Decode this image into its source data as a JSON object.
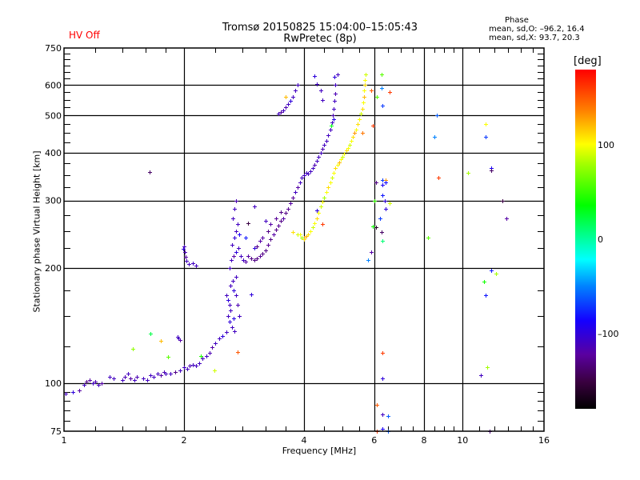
{
  "header": {
    "title_line1": "Tromsø 20150825 15:04:00–15:05:43",
    "title_line2": "RwPretec (8p)",
    "status": "HV Off",
    "status_color": "#ff0000"
  },
  "phase_info": {
    "title": "Phase",
    "o_line": "mean, sd,O: –96.2, 16.4",
    "x_line": "mean, sd,X:  93.7, 20.3"
  },
  "colorbar": {
    "unit": "[deg]",
    "range": [
      -180,
      180
    ],
    "ticks": [
      {
        "value": 100,
        "label": "100"
      },
      {
        "value": 0,
        "label": "0"
      },
      {
        "value": -100,
        "label": "–100"
      }
    ]
  },
  "chart_data": {
    "type": "scatter",
    "title": "Tromsø 20150825 15:04:00–15:05:43",
    "subtitle": "RwPretec (8p)",
    "xlabel": "Frequency [MHz]",
    "ylabel": "Stationary phase Virtual Height [km]",
    "xscale": "log",
    "yscale": "log",
    "xlim": [
      1,
      16
    ],
    "ylim": [
      75,
      750
    ],
    "grid": true,
    "x_ticks": [
      {
        "value": 1,
        "label": "1"
      },
      {
        "value": 2,
        "label": "2"
      },
      {
        "value": 4,
        "label": "4"
      },
      {
        "value": 6,
        "label": "6"
      },
      {
        "value": 8,
        "label": "8"
      },
      {
        "value": 10,
        "label": "10"
      },
      {
        "value": 16,
        "label": "16"
      }
    ],
    "y_ticks": [
      {
        "value": 75,
        "label": "75"
      },
      {
        "value": 100,
        "label": "100"
      },
      {
        "value": 200,
        "label": "200"
      },
      {
        "value": 300,
        "label": "300"
      },
      {
        "value": 400,
        "label": "400"
      },
      {
        "value": 500,
        "label": "500"
      },
      {
        "value": 600,
        "label": "600"
      },
      {
        "value": 750,
        "label": "750"
      }
    ],
    "color_by": "phase_deg",
    "points_format": [
      "freq_MHz",
      "height_km",
      "phase_deg"
    ],
    "points": [
      [
        1.01,
        94,
        -110
      ],
      [
        1.05,
        95,
        -100
      ],
      [
        1.09,
        96,
        -120
      ],
      [
        1.12,
        99,
        -110
      ],
      [
        1.14,
        101,
        -130
      ],
      [
        1.16,
        102,
        -120
      ],
      [
        1.18,
        100,
        -110
      ],
      [
        1.2,
        101,
        -115
      ],
      [
        1.22,
        99,
        -110
      ],
      [
        1.24,
        100,
        -120
      ],
      [
        1.3,
        104,
        -110
      ],
      [
        1.33,
        103,
        -110
      ],
      [
        1.4,
        102,
        -110
      ],
      [
        1.42,
        104,
        -115
      ],
      [
        1.45,
        106,
        -110
      ],
      [
        1.47,
        103,
        -120
      ],
      [
        1.5,
        102,
        -110
      ],
      [
        1.52,
        104,
        -115
      ],
      [
        1.58,
        103,
        -110
      ],
      [
        1.62,
        102,
        -110
      ],
      [
        1.65,
        105,
        -110
      ],
      [
        1.68,
        104,
        -110
      ],
      [
        1.72,
        106,
        -110
      ],
      [
        1.75,
        105,
        -120
      ],
      [
        1.78,
        107,
        -115
      ],
      [
        1.8,
        106,
        -110
      ],
      [
        1.85,
        106,
        -110
      ],
      [
        1.9,
        107,
        -130
      ],
      [
        1.95,
        108,
        -110
      ],
      [
        2.0,
        110,
        -110
      ],
      [
        2.04,
        109,
        -110
      ],
      [
        2.07,
        111,
        -115
      ],
      [
        2.1,
        112,
        -110
      ],
      [
        2.14,
        111,
        -110
      ],
      [
        2.18,
        113,
        -110
      ],
      [
        2.22,
        116,
        -110
      ],
      [
        2.28,
        118,
        -110
      ],
      [
        2.32,
        120,
        -115
      ],
      [
        2.35,
        124,
        -120
      ],
      [
        2.4,
        127,
        -110
      ],
      [
        2.45,
        131,
        -110
      ],
      [
        2.5,
        133,
        -100
      ],
      [
        2.55,
        136,
        -110
      ],
      [
        1.93,
        132,
        -110
      ],
      [
        1.95,
        130,
        -120
      ],
      [
        1.94,
        131,
        -110
      ],
      [
        1.49,
        123,
        75
      ],
      [
        1.65,
        135,
        20
      ],
      [
        1.75,
        129,
        120
      ],
      [
        1.82,
        117,
        60
      ],
      [
        2.72,
        121,
        150
      ],
      [
        2.38,
        108,
        90
      ],
      [
        2.2,
        118,
        45
      ],
      [
        2.0,
        228,
        -110
      ],
      [
        2.01,
        220,
        -115
      ],
      [
        2.02,
        214,
        -120
      ],
      [
        2.03,
        209,
        -110
      ],
      [
        2.06,
        205,
        -110
      ],
      [
        2.1,
        206,
        -110
      ],
      [
        2.14,
        203,
        -110
      ],
      [
        1.99,
        224,
        -100
      ],
      [
        1.64,
        356,
        -140
      ],
      [
        2.55,
        170,
        -110
      ],
      [
        2.58,
        165,
        -100
      ],
      [
        2.6,
        160,
        -110
      ],
      [
        2.62,
        155,
        -110
      ],
      [
        2.58,
        150,
        -110
      ],
      [
        2.6,
        145,
        -100
      ],
      [
        2.64,
        140,
        -110
      ],
      [
        2.68,
        137,
        -110
      ],
      [
        2.62,
        180,
        -110
      ],
      [
        2.66,
        175,
        -100
      ],
      [
        2.7,
        170,
        -110
      ],
      [
        2.65,
        185,
        -110
      ],
      [
        2.7,
        190,
        -110
      ],
      [
        2.72,
        160,
        -115
      ],
      [
        2.75,
        150,
        -110
      ],
      [
        2.66,
        148,
        -95
      ],
      [
        2.6,
        200,
        -110
      ],
      [
        2.63,
        210,
        -110
      ],
      [
        2.66,
        215,
        -120
      ],
      [
        2.7,
        220,
        -100
      ],
      [
        2.74,
        225,
        -110
      ],
      [
        2.78,
        215,
        -110
      ],
      [
        2.82,
        210,
        -110
      ],
      [
        2.86,
        208,
        -120
      ],
      [
        2.64,
        230,
        -110
      ],
      [
        2.68,
        240,
        -100
      ],
      [
        2.7,
        250,
        -110
      ],
      [
        2.72,
        260,
        -110
      ],
      [
        2.65,
        270,
        -110
      ],
      [
        2.68,
        285,
        -110
      ],
      [
        2.7,
        300,
        -115
      ],
      [
        2.75,
        245,
        -90
      ],
      [
        2.9,
        215,
        -120
      ],
      [
        2.95,
        212,
        -130
      ],
      [
        3.0,
        210,
        -130
      ],
      [
        3.05,
        212,
        -130
      ],
      [
        3.1,
        215,
        -125
      ],
      [
        3.15,
        218,
        -130
      ],
      [
        3.2,
        222,
        -130
      ],
      [
        3.25,
        230,
        -125
      ],
      [
        3.3,
        238,
        -130
      ],
      [
        3.35,
        245,
        -120
      ],
      [
        3.4,
        252,
        -130
      ],
      [
        3.45,
        258,
        -125
      ],
      [
        3.5,
        265,
        -130
      ],
      [
        3.55,
        270,
        -120
      ],
      [
        3.6,
        278,
        -130
      ],
      [
        3.65,
        285,
        -125
      ],
      [
        3.7,
        295,
        -120
      ],
      [
        3.75,
        305,
        -125
      ],
      [
        3.8,
        315,
        -110
      ],
      [
        3.85,
        325,
        -120
      ],
      [
        3.9,
        335,
        -110
      ],
      [
        3.95,
        345,
        -110
      ],
      [
        4.0,
        350,
        -110
      ],
      [
        4.05,
        355,
        -110
      ],
      [
        4.1,
        352,
        -110
      ],
      [
        4.15,
        358,
        -110
      ],
      [
        4.2,
        365,
        -110
      ],
      [
        4.25,
        372,
        -115
      ],
      [
        4.3,
        380,
        -110
      ],
      [
        4.35,
        390,
        -110
      ],
      [
        4.4,
        400,
        -110
      ],
      [
        4.45,
        410,
        -115
      ],
      [
        4.5,
        420,
        -110
      ],
      [
        4.55,
        430,
        -110
      ],
      [
        4.6,
        445,
        -110
      ],
      [
        4.65,
        460,
        -110
      ],
      [
        4.7,
        480,
        -110
      ],
      [
        4.72,
        500,
        -115
      ],
      [
        4.74,
        520,
        -110
      ],
      [
        4.76,
        545,
        -110
      ],
      [
        4.78,
        570,
        -115
      ],
      [
        4.8,
        600,
        -110
      ],
      [
        4.77,
        630,
        -100
      ],
      [
        4.85,
        640,
        -110
      ],
      [
        4.75,
        490,
        -95
      ],
      [
        4.68,
        470,
        30
      ],
      [
        3.0,
        225,
        -100
      ],
      [
        3.05,
        228,
        -130
      ],
      [
        3.1,
        235,
        -120
      ],
      [
        3.15,
        240,
        -120
      ],
      [
        3.25,
        250,
        -130
      ],
      [
        3.3,
        260,
        -120
      ],
      [
        3.4,
        270,
        -125
      ],
      [
        3.5,
        280,
        -130
      ],
      [
        2.85,
        240,
        -80
      ],
      [
        2.9,
        262,
        -150
      ],
      [
        3.2,
        265,
        -110
      ],
      [
        3.0,
        290,
        -110
      ],
      [
        3.45,
        505,
        -110
      ],
      [
        3.5,
        510,
        -120
      ],
      [
        3.55,
        515,
        -110
      ],
      [
        3.6,
        525,
        -115
      ],
      [
        3.65,
        535,
        -110
      ],
      [
        3.7,
        545,
        -100
      ],
      [
        3.75,
        560,
        -110
      ],
      [
        3.8,
        580,
        -110
      ],
      [
        3.85,
        600,
        -110
      ],
      [
        3.6,
        560,
        120
      ],
      [
        4.25,
        635,
        -100
      ],
      [
        4.3,
        605,
        -110
      ],
      [
        4.4,
        580,
        -110
      ],
      [
        4.45,
        550,
        -110
      ],
      [
        4.0,
        240,
        130
      ],
      [
        4.05,
        242,
        120
      ],
      [
        4.1,
        245,
        110
      ],
      [
        4.15,
        250,
        100
      ],
      [
        4.2,
        255,
        90
      ],
      [
        4.25,
        262,
        100
      ],
      [
        4.3,
        270,
        110
      ],
      [
        4.35,
        278,
        100
      ],
      [
        4.4,
        290,
        90
      ],
      [
        4.45,
        298,
        100
      ],
      [
        4.5,
        305,
        80
      ],
      [
        4.55,
        315,
        100
      ],
      [
        4.6,
        325,
        110
      ],
      [
        4.65,
        335,
        100
      ],
      [
        4.7,
        345,
        90
      ],
      [
        4.75,
        355,
        100
      ],
      [
        4.8,
        365,
        110
      ],
      [
        4.85,
        372,
        100
      ],
      [
        4.9,
        378,
        120
      ],
      [
        4.95,
        385,
        100
      ],
      [
        5.0,
        390,
        90
      ],
      [
        5.05,
        398,
        100
      ],
      [
        5.1,
        405,
        110
      ],
      [
        5.15,
        412,
        100
      ],
      [
        5.2,
        420,
        90
      ],
      [
        5.25,
        430,
        100
      ],
      [
        5.3,
        440,
        110
      ],
      [
        5.35,
        450,
        130
      ],
      [
        5.4,
        460,
        100
      ],
      [
        5.45,
        475,
        110
      ],
      [
        5.5,
        490,
        100
      ],
      [
        5.55,
        505,
        90
      ],
      [
        5.6,
        520,
        110
      ],
      [
        5.62,
        540,
        100
      ],
      [
        5.65,
        560,
        120
      ],
      [
        5.66,
        580,
        100
      ],
      [
        5.67,
        600,
        110
      ],
      [
        5.68,
        620,
        100
      ],
      [
        5.7,
        640,
        90
      ],
      [
        5.6,
        450,
        140
      ],
      [
        3.75,
        248,
        110
      ],
      [
        3.85,
        245,
        90
      ],
      [
        3.9,
        245,
        100
      ],
      [
        3.95,
        240,
        80
      ],
      [
        4.0,
        238,
        110
      ],
      [
        4.45,
        260,
        160
      ],
      [
        4.3,
        282,
        -100
      ],
      [
        5.9,
        580,
        150
      ],
      [
        5.95,
        470,
        160
      ],
      [
        6.1,
        560,
        60
      ],
      [
        6.25,
        640,
        60
      ],
      [
        6.27,
        590,
        -50
      ],
      [
        6.3,
        530,
        -70
      ],
      [
        6.55,
        575,
        160
      ],
      [
        6.05,
        335,
        -130
      ],
      [
        6.3,
        340,
        -70
      ],
      [
        6.4,
        340,
        130
      ],
      [
        6.4,
        335,
        -85
      ],
      [
        6.3,
        330,
        -90
      ],
      [
        6.25,
        248,
        -140
      ],
      [
        6.05,
        255,
        -160
      ],
      [
        6.3,
        310,
        -80
      ],
      [
        6.38,
        300,
        -100
      ],
      [
        6.55,
        295,
        90
      ],
      [
        6.0,
        300,
        50
      ],
      [
        6.4,
        285,
        -100
      ],
      [
        6.2,
        270,
        -70
      ],
      [
        8.2,
        240,
        60
      ],
      [
        8.6,
        500,
        -60
      ],
      [
        8.5,
        440,
        -50
      ],
      [
        8.7,
        345,
        160
      ],
      [
        10.3,
        355,
        80
      ],
      [
        11.4,
        475,
        100
      ],
      [
        11.4,
        440,
        -70
      ],
      [
        11.8,
        365,
        -90
      ],
      [
        11.8,
        360,
        -140
      ],
      [
        12.6,
        300,
        -150
      ],
      [
        12.9,
        270,
        -120
      ],
      [
        11.8,
        197,
        -80
      ],
      [
        12.1,
        193,
        80
      ],
      [
        11.3,
        184,
        40
      ],
      [
        11.4,
        170,
        -80
      ],
      [
        11.5,
        110,
        80
      ],
      [
        11.1,
        105,
        -110
      ],
      [
        6.3,
        120,
        160
      ],
      [
        6.3,
        103,
        -100
      ],
      [
        6.1,
        88,
        150
      ],
      [
        6.3,
        83,
        -110
      ],
      [
        6.5,
        82,
        -60
      ],
      [
        6.3,
        76,
        -90
      ],
      [
        6.1,
        75,
        160
      ],
      [
        6.5,
        75,
        -60
      ],
      [
        11.7,
        75,
        -130
      ],
      [
        5.95,
        257,
        40
      ],
      [
        5.9,
        220,
        -120
      ],
      [
        5.8,
        210,
        -50
      ],
      [
        6.3,
        235,
        10
      ],
      [
        2.95,
        171,
        -100
      ]
    ]
  }
}
